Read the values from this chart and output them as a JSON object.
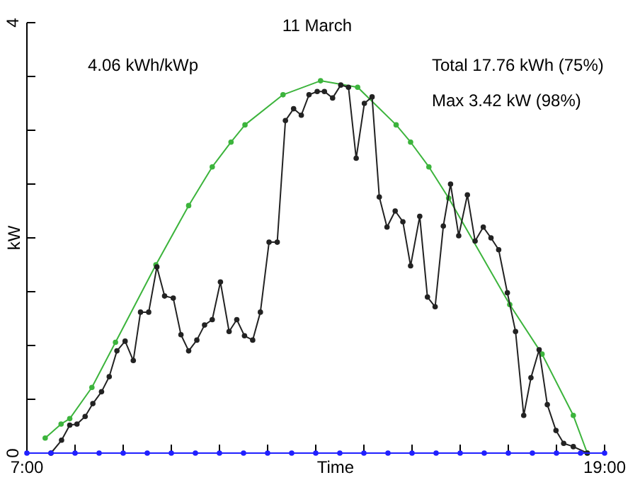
{
  "chart_data": {
    "type": "line",
    "title": "11 March",
    "xlabel": "Time",
    "ylabel": "kW",
    "annotations": [
      "4.06 kWh/kWp",
      "Total 17.76 kWh (75%)",
      "Max 3.42 kW (98%)"
    ],
    "xlim": [
      7,
      19
    ],
    "ylim": [
      0,
      4
    ],
    "xticks": [
      {
        "value": 7,
        "label": "7:00"
      },
      {
        "value": 8,
        "label": null
      },
      {
        "value": 9,
        "label": null
      },
      {
        "value": 10,
        "label": null
      },
      {
        "value": 11,
        "label": null
      },
      {
        "value": 12,
        "label": null
      },
      {
        "value": 13,
        "label": null
      },
      {
        "value": 14,
        "label": null
      },
      {
        "value": 15,
        "label": null
      },
      {
        "value": 16,
        "label": null
      },
      {
        "value": 17,
        "label": null
      },
      {
        "value": 18,
        "label": null
      },
      {
        "value": 19,
        "label": "19:00"
      }
    ],
    "yticks": [
      0,
      {
        "value": 0.5,
        "label": null
      },
      {
        "value": 1,
        "label": null
      },
      {
        "value": 1.5,
        "label": null
      },
      {
        "value": 2,
        "label": null
      },
      {
        "value": 2.5,
        "label": null
      },
      {
        "value": 3,
        "label": null
      },
      {
        "value": 3.5,
        "label": null
      },
      4
    ],
    "marker": "circle",
    "grid": false,
    "series": [
      {
        "color": "#3cb43c",
        "x": [
          7.38,
          7.71,
          7.89,
          8.35,
          8.84,
          9.68,
          10.36,
          10.85,
          11.24,
          11.53,
          12.32,
          13.1,
          13.87,
          14.67,
          14.97,
          15.35,
          15.76,
          17.03,
          17.7,
          18.35,
          18.64
        ],
        "values": [
          0.14,
          0.27,
          0.32,
          0.61,
          1.03,
          1.75,
          2.3,
          2.66,
          2.89,
          3.05,
          3.33,
          3.46,
          3.4,
          3.05,
          2.89,
          2.66,
          2.37,
          1.38,
          0.92,
          0.35,
          0
        ]
      },
      {
        "color": "#222222",
        "x": [
          7.5,
          7.72,
          7.89,
          8.04,
          8.21,
          8.37,
          8.55,
          8.71,
          8.87,
          9.04,
          9.21,
          9.36,
          9.53,
          9.7,
          9.86,
          10.04,
          10.2,
          10.36,
          10.53,
          10.69,
          10.85,
          11.02,
          11.2,
          11.36,
          11.52,
          11.69,
          11.85,
          12.03,
          12.2,
          12.37,
          12.54,
          12.7,
          12.86,
          13.03,
          13.18,
          13.35,
          13.52,
          13.68,
          13.84,
          14.01,
          14.17,
          14.32,
          14.48,
          14.65,
          14.81,
          14.97,
          15.16,
          15.32,
          15.48,
          15.65,
          15.8,
          15.97,
          16.15,
          16.31,
          16.48,
          16.64,
          16.8,
          16.98,
          17.15,
          17.32,
          17.47,
          17.64,
          17.81,
          17.99,
          18.15,
          18.35,
          18.64
        ],
        "values": [
          0,
          0.12,
          0.26,
          0.27,
          0.34,
          0.46,
          0.57,
          0.71,
          0.95,
          1.04,
          0.86,
          1.31,
          1.31,
          1.73,
          1.46,
          1.44,
          1.1,
          0.95,
          1.05,
          1.19,
          1.24,
          1.59,
          1.13,
          1.24,
          1.09,
          1.05,
          1.31,
          1.96,
          1.96,
          3.09,
          3.2,
          3.14,
          3.33,
          3.36,
          3.36,
          3.3,
          3.42,
          3.4,
          2.74,
          3.25,
          3.31,
          2.38,
          2.1,
          2.25,
          2.15,
          1.74,
          2.2,
          1.45,
          1.36,
          2.11,
          2.5,
          2.02,
          2.4,
          1.97,
          2.1,
          2,
          1.89,
          1.49,
          1.13,
          0.35,
          0.7,
          0.96,
          0.45,
          0.21,
          0.09,
          0.06,
          0
        ]
      },
      {
        "color": "#2020ff",
        "x": [
          7,
          7.5,
          8,
          8.5,
          9,
          9.5,
          10,
          10.5,
          11,
          11.5,
          12,
          12.5,
          13,
          13.5,
          14,
          14.5,
          15,
          15.5,
          16,
          16.5,
          17,
          17.5,
          18,
          18.5,
          19
        ],
        "values": [
          0,
          0,
          0,
          0,
          0,
          0,
          0,
          0,
          0,
          0,
          0,
          0,
          0,
          0,
          0,
          0,
          0,
          0,
          0,
          0,
          0,
          0,
          0,
          0,
          0
        ]
      }
    ]
  }
}
